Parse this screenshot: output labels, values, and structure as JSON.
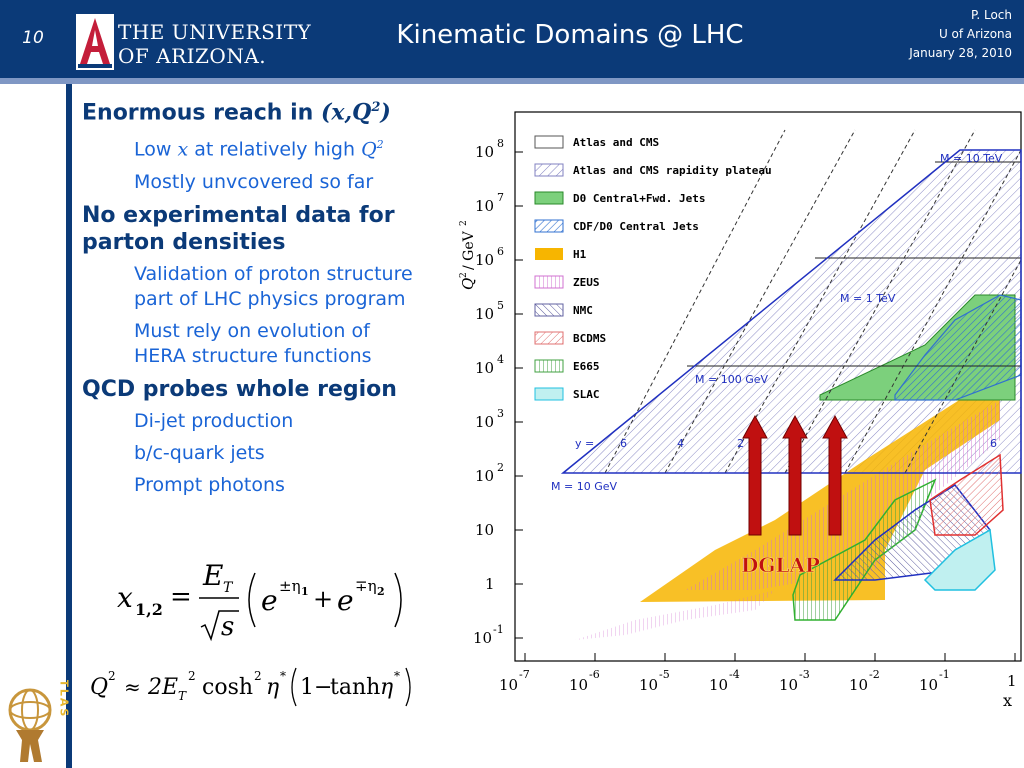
{
  "header": {
    "slide_number": "10",
    "logo_line1": "THE UNIVERSITY",
    "logo_line2": "OF ARIZONA.",
    "title": "Kinematic Domains @ LHC",
    "author": "P. Loch",
    "institution": "U of Arizona",
    "date": "January 28, 2010"
  },
  "bullets": [
    {
      "level": 1,
      "text": "Enormous reach in ",
      "math": "(x,Q",
      "sup": "2",
      "math_end": ")"
    },
    {
      "level": 2,
      "text": "Low ",
      "math": "x",
      "text2": " at relatively high ",
      "math2": "Q",
      "sup": "2"
    },
    {
      "level": 2,
      "text": "Mostly unvcovered so far"
    },
    {
      "level": 1,
      "text": "No experimental data for parton densities"
    },
    {
      "level": 2,
      "text": "Validation of proton structure part of LHC physics program"
    },
    {
      "level": 2,
      "text": "Must rely on evolution of HERA structure functions"
    },
    {
      "level": 1,
      "text": "QCD probes whole region"
    },
    {
      "level": 2,
      "text": "Di-jet production"
    },
    {
      "level": 2,
      "text": "b/c-quark jets"
    },
    {
      "level": 2,
      "text": "Prompt photons"
    }
  ],
  "equations": {
    "eq1": {
      "lhs": "x",
      "lhs_sub": "1,2",
      "eq": "=",
      "num": "E",
      "num_sub": "T",
      "den": "s",
      "term1": "e",
      "sup1": "±η",
      "sup1_sub": "1",
      "plus": "+",
      "term2": "e",
      "sup2": "∓η",
      "sup2_sub": "2"
    },
    "eq2": {
      "q": "Q",
      "q_sup": "2",
      "approx": "≈",
      "coef": "2E",
      "coef_sub": "T",
      "coef_sup": "2",
      "cosh": "cosh",
      "cosh_sup": "2",
      "eta": "η",
      "star": "*",
      "one": "1",
      "minus": "−",
      "tanh": "tanh"
    }
  },
  "atlas_logo": {
    "text": "ATLAS",
    "colors": {
      "body": "#c8963c",
      "text": "#e8b830"
    }
  },
  "plot": {
    "y_axis_label": "Q",
    "y_axis_label_sup": "2",
    "y_axis_unit": "/ GeV",
    "y_axis_unit_sup": "2",
    "x_axis_label": "x",
    "y_ticks": [
      {
        "base": "10",
        "exp": "8"
      },
      {
        "base": "10",
        "exp": "7"
      },
      {
        "base": "10",
        "exp": "6"
      },
      {
        "base": "10",
        "exp": "5"
      },
      {
        "base": "10",
        "exp": "4"
      },
      {
        "base": "10",
        "exp": "3"
      },
      {
        "base": "10",
        "exp": "2"
      },
      {
        "base": "10",
        "exp": ""
      },
      {
        "base": "1",
        "exp": ""
      },
      {
        "base": "10",
        "exp": "-1"
      }
    ],
    "x_ticks": [
      {
        "base": "10",
        "exp": "-7"
      },
      {
        "base": "10",
        "exp": "-6"
      },
      {
        "base": "10",
        "exp": "-5"
      },
      {
        "base": "10",
        "exp": "-4"
      },
      {
        "base": "10",
        "exp": "-3"
      },
      {
        "base": "10",
        "exp": "-2"
      },
      {
        "base": "10",
        "exp": "-1"
      },
      {
        "base": "1",
        "exp": ""
      }
    ],
    "legend": [
      {
        "label": "Atlas and CMS",
        "style": "open",
        "color": "#555555"
      },
      {
        "label": "Atlas and CMS rapidity plateau",
        "style": "hatch",
        "color": "#8080c0"
      },
      {
        "label": "D0 Central+Fwd. Jets",
        "style": "solid",
        "color": "#7cd07c"
      },
      {
        "label": "CDF/D0 Central Jets",
        "style": "hatch",
        "color": "#3070d0"
      },
      {
        "label": "H1",
        "style": "solid",
        "color": "#f7b500"
      },
      {
        "label": "ZEUS",
        "style": "vhatch",
        "color": "#d070d0"
      },
      {
        "label": "NMC",
        "style": "hatch",
        "color": "#6060a0"
      },
      {
        "label": "BCDMS",
        "style": "hatch",
        "color": "#e07070"
      },
      {
        "label": "E665",
        "style": "vhatch",
        "color": "#40a040"
      },
      {
        "label": "SLAC",
        "style": "solid",
        "color": "#c0f0f0"
      }
    ],
    "mass_lines": [
      {
        "label": "M = 10 TeV"
      },
      {
        "label": "M = 1 TeV"
      },
      {
        "label": "M = 100 GeV"
      },
      {
        "label": "M = 10 GeV"
      }
    ],
    "rapidity_labels": [
      "y =",
      "6",
      "4",
      "2",
      "6"
    ],
    "dglap_label": "DGLAP",
    "colors": {
      "boundary": "#2030c0",
      "arrow": "#c01010",
      "dglap": "#c01010"
    }
  }
}
